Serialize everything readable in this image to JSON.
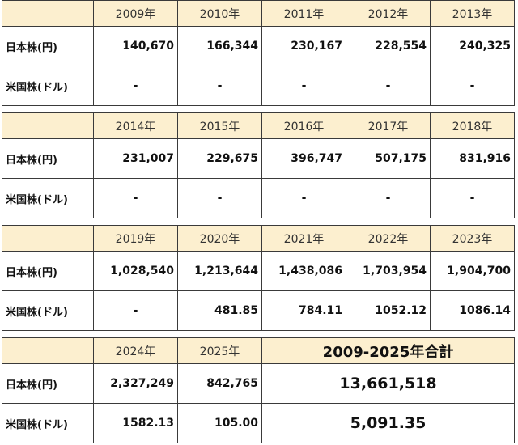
{
  "labels": {
    "jp": "日本株(円)",
    "us": "米国株(ドル)"
  },
  "blocks": [
    {
      "years": [
        "2009年",
        "2010年",
        "2011年",
        "2012年",
        "2013年"
      ],
      "jp": [
        "140,670",
        "166,344",
        "230,167",
        "228,554",
        "240,325"
      ],
      "us": [
        "-",
        "-",
        "-",
        "-",
        "-"
      ]
    },
    {
      "years": [
        "2014年",
        "2015年",
        "2016年",
        "2017年",
        "2018年"
      ],
      "jp": [
        "231,007",
        "229,675",
        "396,747",
        "507,175",
        "831,916"
      ],
      "us": [
        "-",
        "-",
        "-",
        "-",
        "-"
      ]
    },
    {
      "years": [
        "2019年",
        "2020年",
        "2021年",
        "2022年",
        "2023年"
      ],
      "jp": [
        "1,028,540",
        "1,213,644",
        "1,438,086",
        "1,703,954",
        "1,904,700"
      ],
      "us": [
        "-",
        "481.85",
        "784.11",
        "1052.12",
        "1086.14"
      ]
    },
    {
      "years": [
        "2024年",
        "2025年"
      ],
      "jp": [
        "2,327,249",
        "842,765"
      ],
      "us": [
        "1582.13",
        "105.00"
      ],
      "total_header": "2009-2025年合計",
      "total_jp": "13,661,518",
      "total_us": "5,091.35"
    }
  ]
}
